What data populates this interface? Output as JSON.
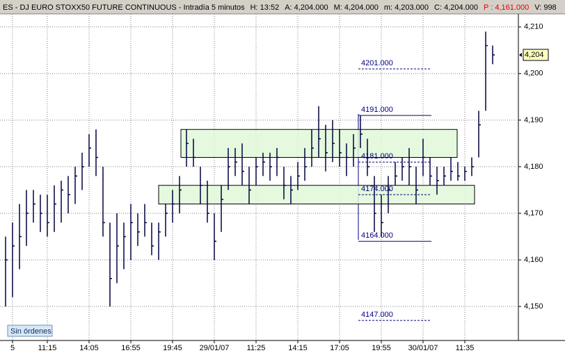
{
  "chart_data": {
    "type": "ohlc",
    "title": "ES - DJ EURO STOXX50 FUTURE CONTINUOUS - Intradía 5 minutos",
    "header_fields": [
      {
        "text": "H: 13:52",
        "color": "#000000"
      },
      {
        "text": "A: 4,204.000",
        "color": "#000000"
      },
      {
        "text": "M: 4,204.000",
        "color": "#000000"
      },
      {
        "text": "m: 4,203.000",
        "color": "#000000"
      },
      {
        "text": "C: 4,204.000",
        "color": "#000000"
      },
      {
        "text": "P : 4,161.000",
        "color": "#e00000"
      },
      {
        "text": "V: 998",
        "color": "#000000"
      }
    ],
    "categories": [
      null,
      "5",
      null,
      null,
      null,
      null,
      "11:15",
      null,
      null,
      null,
      null,
      null,
      "14:05",
      null,
      null,
      null,
      null,
      null,
      "16:55",
      null,
      null,
      null,
      null,
      null,
      "19:45",
      null,
      null,
      null,
      null,
      null,
      "29/01/07",
      null,
      null,
      null,
      null,
      null,
      "11:25",
      null,
      null,
      null,
      null,
      null,
      "14:15",
      null,
      null,
      null,
      null,
      null,
      "17:05",
      null,
      null,
      null,
      null,
      null,
      "19:55",
      null,
      null,
      null,
      null,
      null,
      "30/01/07",
      null,
      null,
      null,
      null,
      null,
      "11:35",
      null,
      null,
      null,
      null
    ],
    "high": [
      4165,
      4168,
      4172,
      4175,
      4175,
      4174,
      4174,
      4176,
      4177,
      4178,
      4180,
      4183,
      4187,
      4188,
      4180,
      4168,
      4170,
      4168,
      4172,
      4170,
      4172,
      4168,
      4168,
      4172,
      4175,
      4178,
      4188,
      4186,
      4180,
      4177,
      4170,
      4176,
      4184,
      4184,
      4185,
      4180,
      4182,
      4183,
      4183,
      4184,
      4180,
      4178,
      4181,
      4184,
      4188,
      4193,
      4189,
      4190,
      4188,
      4185,
      4187,
      4191,
      4186,
      4178,
      4174,
      4178,
      4181,
      4182,
      4184,
      4180,
      4186,
      4182,
      4180,
      4180,
      4182,
      4181,
      4180,
      4182,
      4192,
      4209,
      4206
    ],
    "low": [
      4150,
      4152,
      4158,
      4163,
      4168,
      4166,
      4165,
      4166,
      4168,
      4170,
      4172,
      4175,
      4180,
      4178,
      4165,
      4150,
      4155,
      4158,
      4160,
      4163,
      4165,
      4161,
      4160,
      4165,
      4168,
      4170,
      4180,
      4180,
      4172,
      4168,
      4160,
      4166,
      4175,
      4178,
      4176,
      4172,
      4176,
      4178,
      4177,
      4178,
      4173,
      4172,
      4175,
      4177,
      4180,
      4182,
      4179,
      4181,
      4180,
      4178,
      4180,
      4184,
      4178,
      4166,
      4165,
      4170,
      4176,
      4177,
      4176,
      4172,
      4178,
      4176,
      4174,
      4176,
      4177,
      4177,
      4177,
      4178,
      4182,
      4192,
      4202
    ],
    "close": [
      4160,
      4163,
      4165,
      4170,
      4172,
      4170,
      4168,
      4172,
      4175,
      4174,
      4178,
      4180,
      4184,
      4182,
      4168,
      4156,
      4163,
      4165,
      4168,
      4166,
      4168,
      4163,
      4166,
      4170,
      4172,
      4175,
      4185,
      4182,
      4176,
      4170,
      4164,
      4173,
      4180,
      4181,
      4179,
      4175,
      4180,
      4181,
      4180,
      4182,
      4176,
      4175,
      4178,
      4180,
      4184,
      4186,
      4183,
      4185,
      4183,
      4182,
      4184,
      4187,
      4180,
      4170,
      4168,
      4175,
      4178,
      4180,
      4180,
      4175,
      4182,
      4178,
      4177,
      4178,
      4179,
      4178,
      4179,
      4180,
      4189,
      4206,
      4204
    ],
    "color": "#000040",
    "ylim": [
      4142.7,
      4212.8
    ],
    "yticks": [
      {
        "value": 4150,
        "label": "4,150"
      },
      {
        "value": 4160,
        "label": "4,160"
      },
      {
        "value": 4170,
        "label": "4,170"
      },
      {
        "value": 4180,
        "label": "4,180"
      },
      {
        "value": 4190,
        "label": "4,190"
      },
      {
        "value": 4200,
        "label": "4,200"
      },
      {
        "value": 4210,
        "label": "4,210"
      }
    ],
    "grid": true,
    "zones": [
      {
        "top": 4188,
        "bottom": 4182
      },
      {
        "top": 4176,
        "bottom": 4172
      }
    ],
    "levels": [
      {
        "value": 4201,
        "label": "4201.000",
        "style": "dashed"
      },
      {
        "value": 4191,
        "label": "4191.000",
        "style": "solid"
      },
      {
        "value": 4181,
        "label": "4181.000",
        "style": "dashed"
      },
      {
        "value": 4174,
        "label": "4174.000",
        "style": "dashed"
      },
      {
        "value": 4164,
        "label": "4164.000",
        "style": "solid"
      },
      {
        "value": 4147,
        "label": "4147.000",
        "style": "dashed"
      }
    ],
    "last_price": {
      "value": 4204,
      "label": "4,204"
    },
    "button": "Sin órdenes"
  }
}
